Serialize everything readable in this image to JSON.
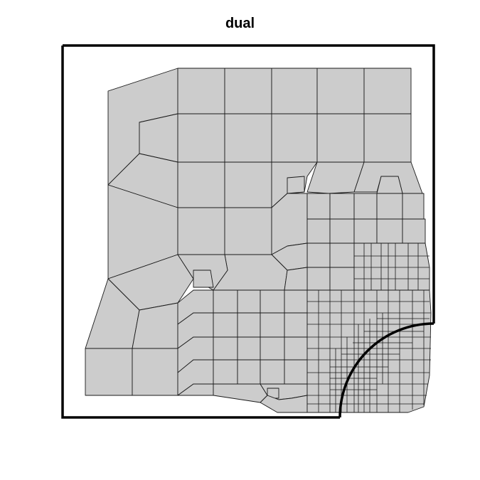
{
  "figure": {
    "title": "dual"
  },
  "colors": {
    "mesh_fill": "#cccccc",
    "mesh_edge": "#1a1a1a",
    "boundary": "#000000"
  }
}
